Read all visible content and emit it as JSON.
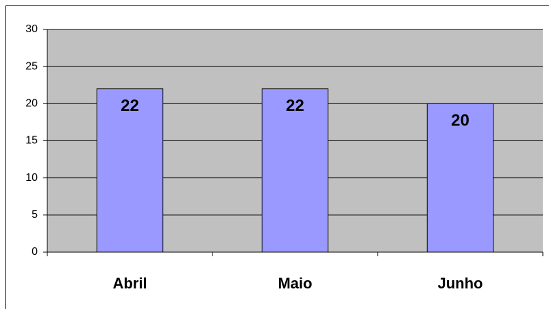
{
  "chart_data": {
    "type": "bar",
    "categories": [
      "Abril",
      "Maio",
      "Junho"
    ],
    "values": [
      22,
      22,
      20
    ],
    "color": "#9999ff",
    "ylim": [
      0,
      30
    ],
    "yticks": [
      0,
      5,
      10,
      15,
      20,
      25,
      30
    ],
    "grid": true
  }
}
